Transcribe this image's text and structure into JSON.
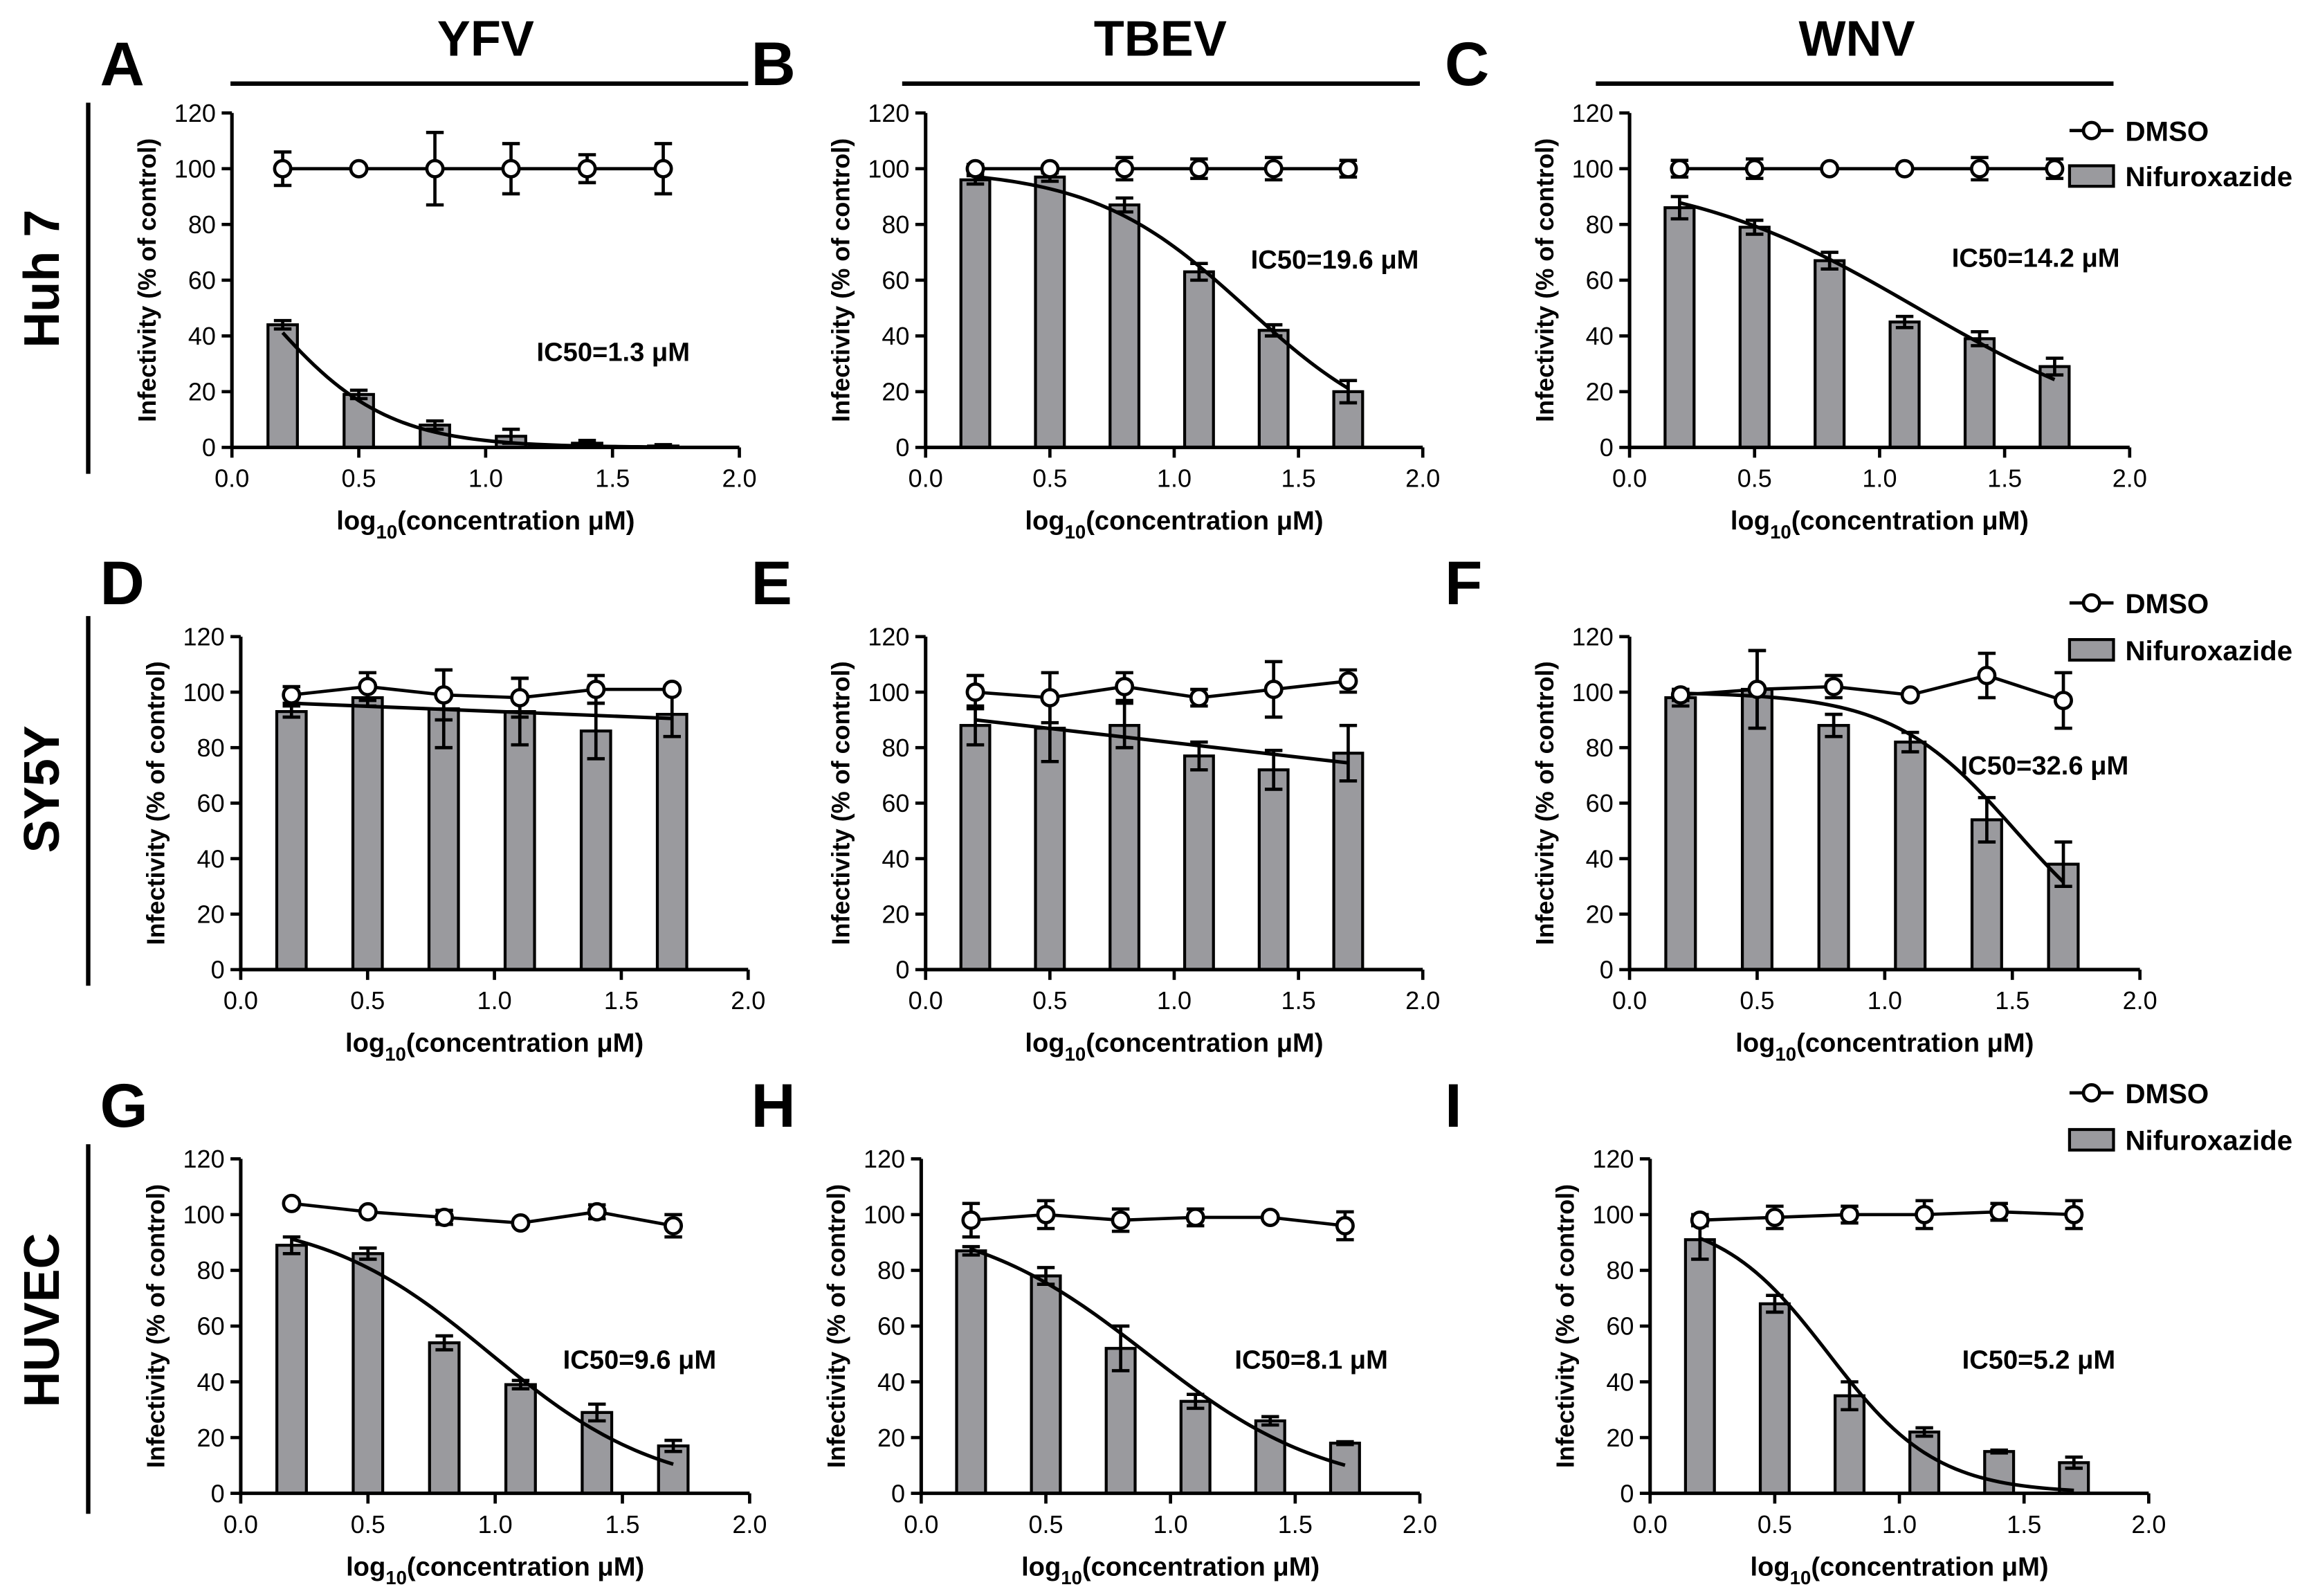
{
  "figure": {
    "columns": [
      "YFV",
      "TBEV",
      "WNV"
    ],
    "rows": [
      "Huh 7",
      "SY5Y",
      "HUVEC"
    ],
    "legend": {
      "dmso": "DMSO",
      "nifuroxazide": "Nifuroxazide"
    },
    "colors": {
      "bar": "#9a9a9e",
      "ink": "#000000",
      "marker_fill": "#ffffff"
    }
  },
  "chart_data": [
    {
      "panel": "A",
      "virus": "YFV",
      "cell_line": "Huh 7",
      "type": "bar",
      "x": [
        0.2,
        0.5,
        0.8,
        1.1,
        1.4,
        1.7
      ],
      "series": [
        {
          "name": "Nifuroxazide",
          "kind": "bar",
          "values": [
            44,
            19,
            8,
            4,
            1.5,
            0.5
          ],
          "errors": [
            1.5,
            1.5,
            1.5,
            2.5,
            1,
            0.5
          ]
        },
        {
          "name": "DMSO",
          "kind": "line",
          "values": [
            100,
            100,
            100,
            100,
            100,
            100
          ],
          "errors": [
            6,
            0,
            13,
            9,
            5,
            9
          ]
        }
      ],
      "fit": {
        "ic50": 1.3,
        "hill": 1.8,
        "top": 100
      },
      "ic50_label": "IC50=1.3 μM",
      "xlabel_pre": "log",
      "xlabel_sub": "10",
      "xlabel_post": "(concentration μM)",
      "ylabel": "Infectivity (% of  control)",
      "xlim": [
        0.0,
        2.0
      ],
      "ylim": [
        0,
        120
      ],
      "xticks": [
        "0.0",
        "0.5",
        "1.0",
        "1.5",
        "2.0"
      ],
      "yticks": [
        "0",
        "20",
        "40",
        "60",
        "80",
        "100",
        "120"
      ]
    },
    {
      "panel": "B",
      "virus": "TBEV",
      "cell_line": "Huh 7",
      "type": "bar",
      "x": [
        0.2,
        0.5,
        0.8,
        1.1,
        1.4,
        1.7
      ],
      "series": [
        {
          "name": "Nifuroxazide",
          "kind": "bar",
          "values": [
            96,
            97,
            87,
            63,
            42,
            20
          ],
          "errors": [
            1.5,
            1.5,
            2.5,
            3,
            2,
            4
          ]
        },
        {
          "name": "DMSO",
          "kind": "line",
          "values": [
            100,
            100,
            100,
            100,
            100,
            100
          ],
          "errors": [
            1.5,
            1,
            4,
            3.5,
            4,
            3
          ]
        }
      ],
      "fit": {
        "ic50": 19.6,
        "hill": 1.4,
        "top": 100
      },
      "ic50_label": "IC50=19.6 μM",
      "xlabel_pre": "log",
      "xlabel_sub": "10",
      "xlabel_post": "(concentration μM)",
      "ylabel": "Infectivity (% of  control)",
      "xlim": [
        0.0,
        2.0
      ],
      "ylim": [
        0,
        120
      ],
      "xticks": [
        "0.0",
        "0.5",
        "1.0",
        "1.5",
        "2.0"
      ],
      "yticks": [
        "0",
        "20",
        "40",
        "60",
        "80",
        "100",
        "120"
      ]
    },
    {
      "panel": "C",
      "virus": "WNV",
      "cell_line": "Huh 7",
      "type": "bar",
      "x": [
        0.2,
        0.5,
        0.8,
        1.1,
        1.4,
        1.7
      ],
      "series": [
        {
          "name": "Nifuroxazide",
          "kind": "bar",
          "values": [
            86,
            79,
            67,
            45,
            39,
            29
          ],
          "errors": [
            4,
            2.5,
            3,
            2,
            2.5,
            3
          ]
        },
        {
          "name": "DMSO",
          "kind": "line",
          "values": [
            100,
            100,
            100,
            100,
            100,
            100
          ],
          "errors": [
            3,
            3.5,
            0,
            0,
            4,
            3.5
          ]
        }
      ],
      "fit": {
        "ic50": 14.2,
        "hill": 0.9,
        "top": 100
      },
      "ic50_label": "IC50=14.2 μM",
      "xlabel_pre": "log",
      "xlabel_sub": "10",
      "xlabel_post": "(concentration μM)",
      "ylabel": "Infectivity (% of  control)",
      "xlim": [
        0.0,
        2.0
      ],
      "ylim": [
        0,
        120
      ],
      "xticks": [
        "0.0",
        "0.5",
        "1.0",
        "1.5",
        "2.0"
      ],
      "yticks": [
        "0",
        "20",
        "40",
        "60",
        "80",
        "100",
        "120"
      ]
    },
    {
      "panel": "D",
      "virus": "YFV",
      "cell_line": "SY5Y",
      "type": "bar",
      "x": [
        0.2,
        0.5,
        0.8,
        1.1,
        1.4,
        1.7
      ],
      "series": [
        {
          "name": "Nifuroxazide",
          "kind": "bar",
          "values": [
            93,
            98,
            94,
            93,
            86,
            92
          ],
          "errors": [
            2,
            3,
            14,
            12,
            10,
            8
          ]
        },
        {
          "name": "DMSO",
          "kind": "line",
          "values": [
            99,
            102,
            99,
            98,
            101,
            101
          ],
          "errors": [
            3,
            5,
            9,
            7,
            5,
            0
          ]
        }
      ],
      "fit": {
        "line": [
          [
            0.2,
            96
          ],
          [
            1.7,
            90.5
          ]
        ]
      },
      "ic50_label": "",
      "xlabel_pre": "log",
      "xlabel_sub": "10",
      "xlabel_post": "(concentration μM)",
      "ylabel": "Infectivity (% of  control)",
      "xlim": [
        0.0,
        2.0
      ],
      "ylim": [
        0,
        120
      ],
      "xticks": [
        "0.0",
        "0.5",
        "1.0",
        "1.5",
        "2.0"
      ],
      "yticks": [
        "0",
        "20",
        "40",
        "60",
        "80",
        "100",
        "120"
      ]
    },
    {
      "panel": "E",
      "virus": "TBEV",
      "cell_line": "SY5Y",
      "type": "bar",
      "x": [
        0.2,
        0.5,
        0.8,
        1.1,
        1.4,
        1.7
      ],
      "series": [
        {
          "name": "Nifuroxazide",
          "kind": "bar",
          "values": [
            88,
            87,
            88,
            77,
            72,
            78
          ],
          "errors": [
            7,
            12,
            8,
            5,
            7,
            10
          ]
        },
        {
          "name": "DMSO",
          "kind": "line",
          "values": [
            100,
            98,
            102,
            98,
            101,
            104
          ],
          "errors": [
            6,
            9,
            5,
            3,
            10,
            4
          ]
        }
      ],
      "fit": {
        "line": [
          [
            0.2,
            90
          ],
          [
            1.7,
            74.5
          ]
        ]
      },
      "ic50_label": "",
      "xlabel_pre": "log",
      "xlabel_sub": "10",
      "xlabel_post": "(concentration μM)",
      "ylabel": "Infectivity (% of  control)",
      "xlim": [
        0.0,
        2.0
      ],
      "ylim": [
        0,
        120
      ],
      "xticks": [
        "0.0",
        "0.5",
        "1.0",
        "1.5",
        "2.0"
      ],
      "yticks": [
        "0",
        "20",
        "40",
        "60",
        "80",
        "100",
        "120"
      ]
    },
    {
      "panel": "F",
      "virus": "WNV",
      "cell_line": "SY5Y",
      "type": "bar",
      "x": [
        0.2,
        0.5,
        0.8,
        1.1,
        1.4,
        1.7
      ],
      "series": [
        {
          "name": "Nifuroxazide",
          "kind": "bar",
          "values": [
            98,
            101,
            88,
            82,
            54,
            38
          ],
          "errors": [
            3,
            14,
            4,
            3.5,
            8,
            8
          ]
        },
        {
          "name": "DMSO",
          "kind": "line",
          "values": [
            99,
            101,
            102,
            99,
            106,
            97
          ],
          "errors": [
            2,
            14,
            4,
            0,
            8,
            10
          ]
        }
      ],
      "fit": {
        "ic50": 32.6,
        "hill": 1.8,
        "top": 100
      },
      "ic50_label": "IC50=32.6 μM",
      "xlabel_pre": "log",
      "xlabel_sub": "10",
      "xlabel_post": "(concentration μM)",
      "ylabel": "Infectivity (% of  control)",
      "xlim": [
        0.0,
        2.0
      ],
      "ylim": [
        0,
        120
      ],
      "xticks": [
        "0.0",
        "0.5",
        "1.0",
        "1.5",
        "2.0"
      ],
      "yticks": [
        "0",
        "20",
        "40",
        "60",
        "80",
        "100",
        "120"
      ]
    },
    {
      "panel": "G",
      "virus": "YFV",
      "cell_line": "HUVEC",
      "type": "bar",
      "x": [
        0.2,
        0.5,
        0.8,
        1.1,
        1.4,
        1.7
      ],
      "series": [
        {
          "name": "Nifuroxazide",
          "kind": "bar",
          "values": [
            89,
            86,
            54,
            39,
            29,
            17
          ],
          "errors": [
            3,
            2,
            2.5,
            1.5,
            3,
            2
          ]
        },
        {
          "name": "DMSO",
          "kind": "line",
          "values": [
            104,
            101,
            99,
            97,
            101,
            96
          ],
          "errors": [
            0,
            0,
            2.5,
            0,
            2.5,
            4
          ]
        }
      ],
      "fit": {
        "ic50": 9.6,
        "hill": 1.3,
        "top": 100
      },
      "ic50_label": "IC50=9.6 μM",
      "xlabel_pre": "log",
      "xlabel_sub": "10",
      "xlabel_post": "(concentration μM)",
      "ylabel": "Infectivity (% of  control)",
      "xlim": [
        0.0,
        2.0
      ],
      "ylim": [
        0,
        120
      ],
      "xticks": [
        "0.0",
        "0.5",
        "1.0",
        "1.5",
        "2.0"
      ],
      "yticks": [
        "0",
        "20",
        "40",
        "60",
        "80",
        "100",
        "120"
      ]
    },
    {
      "panel": "H",
      "virus": "TBEV",
      "cell_line": "HUVEC",
      "type": "bar",
      "x": [
        0.2,
        0.5,
        0.8,
        1.1,
        1.4,
        1.7
      ],
      "series": [
        {
          "name": "Nifuroxazide",
          "kind": "bar",
          "values": [
            87,
            78,
            52,
            33,
            26,
            18
          ],
          "errors": [
            1.5,
            3,
            8,
            2.5,
            1.5,
            0.5
          ]
        },
        {
          "name": "DMSO",
          "kind": "line",
          "values": [
            98,
            100,
            98,
            99,
            99,
            96
          ],
          "errors": [
            6,
            5,
            4,
            3,
            0,
            5
          ]
        }
      ],
      "fit": {
        "ic50": 8.1,
        "hill": 1.2,
        "top": 100
      },
      "ic50_label": "IC50=8.1 μM",
      "xlabel_pre": "log",
      "xlabel_sub": "10",
      "xlabel_post": "(concentration μM)",
      "ylabel": "Infectivity (% of  control)",
      "xlim": [
        0.0,
        2.0
      ],
      "ylim": [
        0,
        120
      ],
      "xticks": [
        "0.0",
        "0.5",
        "1.0",
        "1.5",
        "2.0"
      ],
      "yticks": [
        "0",
        "20",
        "40",
        "60",
        "80",
        "100",
        "120"
      ]
    },
    {
      "panel": "I",
      "virus": "WNV",
      "cell_line": "HUVEC",
      "type": "bar",
      "x": [
        0.2,
        0.5,
        0.8,
        1.1,
        1.4,
        1.7
      ],
      "series": [
        {
          "name": "Nifuroxazide",
          "kind": "bar",
          "values": [
            91,
            68,
            35,
            22,
            15,
            11
          ],
          "errors": [
            7,
            3,
            5,
            1.5,
            0.5,
            2
          ]
        },
        {
          "name": "DMSO",
          "kind": "line",
          "values": [
            98,
            99,
            100,
            100,
            101,
            100
          ],
          "errors": [
            2,
            4,
            3,
            5,
            3,
            5
          ]
        }
      ],
      "fit": {
        "ic50": 5.2,
        "hill": 2.0,
        "top": 100
      },
      "ic50_label": "IC50=5.2 μM",
      "xlabel_pre": "log",
      "xlabel_sub": "10",
      "xlabel_post": "(concentration μM)",
      "ylabel": "Infectivity (% of  control)",
      "xlim": [
        0.0,
        2.0
      ],
      "ylim": [
        0,
        120
      ],
      "xticks": [
        "0.0",
        "0.5",
        "1.0",
        "1.5",
        "2.0"
      ],
      "yticks": [
        "0",
        "20",
        "40",
        "60",
        "80",
        "100",
        "120"
      ]
    }
  ]
}
